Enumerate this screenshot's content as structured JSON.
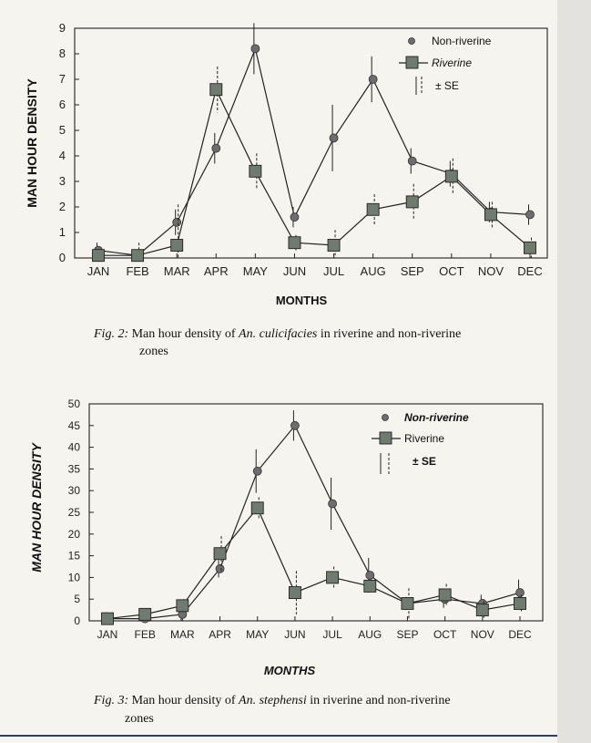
{
  "chart_data": [
    {
      "type": "line",
      "title": "",
      "xlabel": "MONTHS",
      "ylabel": "MAN HOUR DENSITY",
      "categories": [
        "JAN",
        "FEB",
        "MAR",
        "APR",
        "MAY",
        "JUN",
        "JUL",
        "AUG",
        "SEP",
        "OCT",
        "NOV",
        "DEC"
      ],
      "yticks": [
        0,
        1,
        2,
        3,
        4,
        5,
        6,
        7,
        8,
        9
      ],
      "ylim": [
        0,
        9
      ],
      "series": [
        {
          "name": "Non-riverine",
          "marker": "circle",
          "values": [
            0.3,
            0.1,
            1.4,
            4.3,
            8.2,
            1.6,
            4.7,
            7.0,
            3.8,
            3.3,
            1.8,
            1.7
          ],
          "se": [
            0.3,
            0.2,
            0.5,
            0.6,
            1.0,
            0.4,
            1.3,
            0.9,
            0.5,
            0.5,
            0.4,
            0.4
          ]
        },
        {
          "name": "Riverine",
          "marker": "square",
          "values": [
            0.1,
            0.1,
            0.5,
            6.6,
            3.4,
            0.6,
            0.5,
            1.9,
            2.2,
            3.2,
            1.7,
            0.4
          ],
          "se": [
            0.2,
            0.5,
            1.6,
            0.9,
            0.7,
            0.3,
            0.6,
            0.6,
            0.7,
            0.7,
            0.5,
            0.4
          ]
        }
      ],
      "legend": {
        "items": [
          "Non-riverine",
          "Riverine"
        ],
        "se_label": "± SE",
        "placement": "top-right"
      },
      "caption": {
        "prefix": "Fig. 2:",
        "text_a": " Man hour density of ",
        "species": "An. culicifacies",
        "text_b": " in riverine and non-riverine",
        "line2": "zones"
      }
    },
    {
      "type": "line",
      "title": "",
      "xlabel": "MONTHS",
      "ylabel": "MAN HOUR DENSITY",
      "categories": [
        "JAN",
        "FEB",
        "MAR",
        "APR",
        "MAY",
        "JUN",
        "JUL",
        "AUG",
        "SEP",
        "OCT",
        "NOV",
        "DEC"
      ],
      "yticks": [
        0,
        5,
        10,
        15,
        20,
        25,
        30,
        35,
        40,
        45,
        50
      ],
      "ylim": [
        0,
        50
      ],
      "series": [
        {
          "name": "Non-riverine",
          "marker": "circle",
          "values": [
            0.5,
            0.5,
            1.5,
            12.0,
            34.5,
            45.0,
            27.0,
            10.5,
            4.0,
            5.0,
            4.0,
            6.5
          ],
          "se": [
            1.5,
            1.0,
            1.5,
            2.0,
            5.0,
            3.5,
            6.0,
            4.0,
            1.5,
            2.0,
            2.0,
            3.0
          ]
        },
        {
          "name": "Riverine",
          "marker": "square",
          "values": [
            0.5,
            1.5,
            3.5,
            15.5,
            26.0,
            6.5,
            10.0,
            8.0,
            4.0,
            6.0,
            2.5,
            4.0
          ],
          "se": [
            0.5,
            1.0,
            1.5,
            4.0,
            2.5,
            5.0,
            2.5,
            1.5,
            3.5,
            2.5,
            2.0,
            2.0
          ]
        }
      ],
      "legend": {
        "items": [
          "Non-riverine",
          "Riverine"
        ],
        "se_label": "± SE",
        "placement": "top-right"
      },
      "caption": {
        "prefix": "Fig. 3:",
        "text_a": " Man hour density of ",
        "species": "An. stephensi",
        "text_b": " in riverine and non-riverine",
        "line2": "zones"
      }
    }
  ]
}
